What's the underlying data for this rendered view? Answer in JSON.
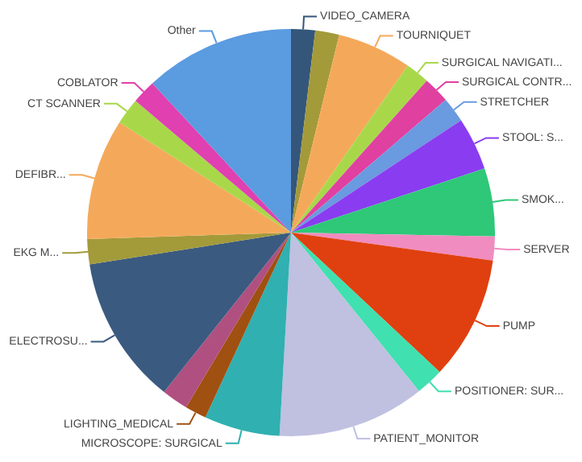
{
  "chart_data": {
    "type": "pie",
    "categories": [
      "VIDEO_CAMERA",
      null,
      "TOURNIQUET",
      "SURGICAL NAVIGATI...",
      "SURGICAL CONTR...",
      "STRETCHER",
      "STOOL: S...",
      "SMOK...",
      "SERVER",
      "PUMP",
      "POSITIONER: SUR...",
      "PATIENT_MONITOR",
      "MICROSCOPE: SURGICAL",
      "LIGHTING_MEDICAL",
      null,
      "ELECTROSU...",
      "EKG M...",
      "DEFIBR...",
      "CT SCANNER",
      "COBLATOR",
      "Other"
    ],
    "values": [
      1.9,
      1.9,
      5.9,
      1.9,
      2.1,
      2.0,
      4.2,
      5.4,
      1.9,
      9.8,
      2.2,
      11.7,
      6.0,
      1.7,
      2.1,
      11.8,
      2.0,
      9.6,
      2.1,
      1.9,
      11.9
    ],
    "colors": [
      "#34567a",
      "#a39a3a",
      "#f4a95a",
      "#a8d84a",
      "#e040a0",
      "#6a9ae0",
      "#8a3cf0",
      "#2ec878",
      "#f08cc0",
      "#e04010",
      "#40e0b0",
      "#c0c0e0",
      "#30b0b0",
      "#a05010",
      "#b05080",
      "#3a5a80",
      "#a39a3a",
      "#f4a95a",
      "#a8d84a",
      "#e040b0",
      "#5b9be0"
    ],
    "legend": false
  }
}
